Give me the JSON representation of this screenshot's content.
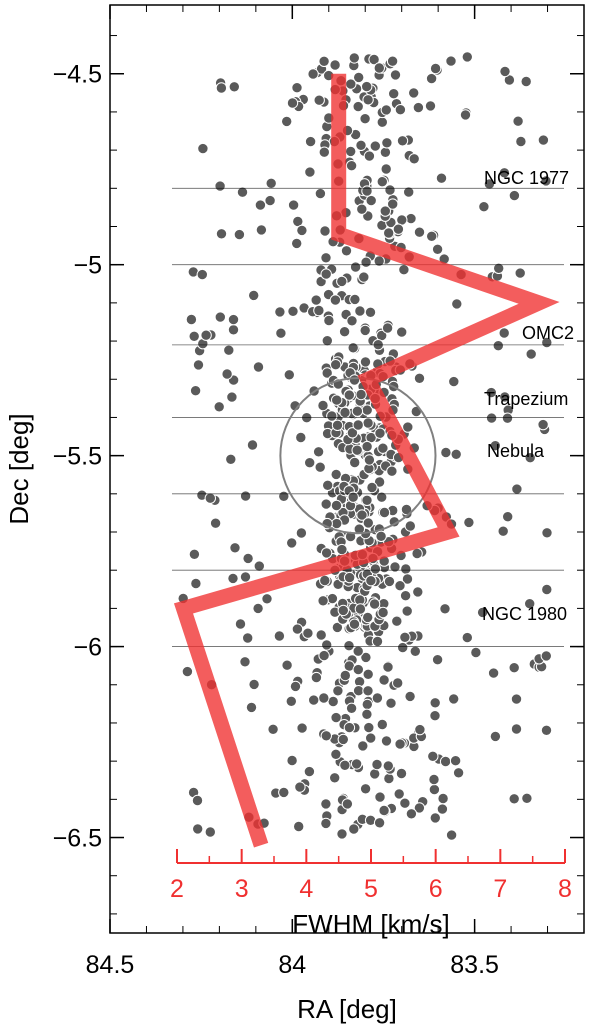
{
  "chart_data": {
    "type": "scatter",
    "xlabel": "RA [deg]",
    "ylabel": "Dec [deg]",
    "xlim": [
      84.5,
      83.2
    ],
    "ylim": [
      -6.75,
      -4.32
    ],
    "x_axis_reversed": true,
    "x_ticks": [
      84.5,
      84,
      83.5
    ],
    "x_tick_labels": [
      "84.5",
      "84",
      "83.5"
    ],
    "y_ticks": [
      -4.5,
      -5,
      -5.5,
      -6,
      -6.5
    ],
    "y_tick_labels": [
      "−4.5",
      "−5",
      "−5.5",
      "−6",
      "−6.5"
    ],
    "legend": "none",
    "grid": false,
    "colors": {
      "points": "#5a5a5a",
      "points_edge": "#ffffff",
      "fwhm": "#f03030",
      "annotation": "#000000",
      "nebula": "#808080",
      "region_line": "#000000"
    },
    "fwhm_axis": {
      "label": "FWHM [km/s]",
      "ticks": [
        2,
        3,
        4,
        5,
        6,
        7,
        8
      ],
      "tick_labels": [
        "2",
        "3",
        "4",
        "5",
        "6",
        "7",
        "8"
      ],
      "range": [
        2,
        8
      ],
      "placed_at_dec": -6.53
    },
    "series": [
      {
        "type": "line",
        "values_fwhm_vs_dec": [
          {
            "fwhm": 4.5,
            "dec": -4.5
          },
          {
            "fwhm": 4.5,
            "dec": -4.92
          },
          {
            "fwhm": 7.6,
            "dec": -5.1
          },
          {
            "fwhm": 4.95,
            "dec": -5.3
          },
          {
            "fwhm": 6.2,
            "dec": -5.7
          },
          {
            "fwhm": 2.1,
            "dec": -5.9
          },
          {
            "fwhm": 3.3,
            "dec": -6.52
          }
        ]
      }
    ],
    "points_note_source": "star positions approximated",
    "points": [],
    "regions": [
      {
        "label": "NGC 1977",
        "dec_bounds": [
          -4.8,
          -5.0
        ]
      },
      {
        "label": "OMC2",
        "dec_bounds": [
          -5.21
        ]
      },
      {
        "label": "Trapezium",
        "dec_bounds": [
          -5.4,
          -5.6
        ]
      },
      {
        "label": "NGC 1980",
        "dec_bounds": [
          -5.8,
          -6.0
        ]
      }
    ],
    "annotations": [
      {
        "text": "NGC 1977",
        "ra": 83.32,
        "dec": -4.75
      },
      {
        "text": "OMC2",
        "ra": 83.33,
        "dec": -5.18
      },
      {
        "text": "Trapezium",
        "ra": 83.33,
        "dec": -5.37
      },
      {
        "text": "Nebula",
        "ra": 83.33,
        "dec": -5.5
      },
      {
        "text": "NGC 1980",
        "ra": 83.33,
        "dec": -5.95
      }
    ],
    "nebula_circle": {
      "center_ra": 83.82,
      "center_dec": -5.5,
      "radius_deg": 0.2
    }
  }
}
